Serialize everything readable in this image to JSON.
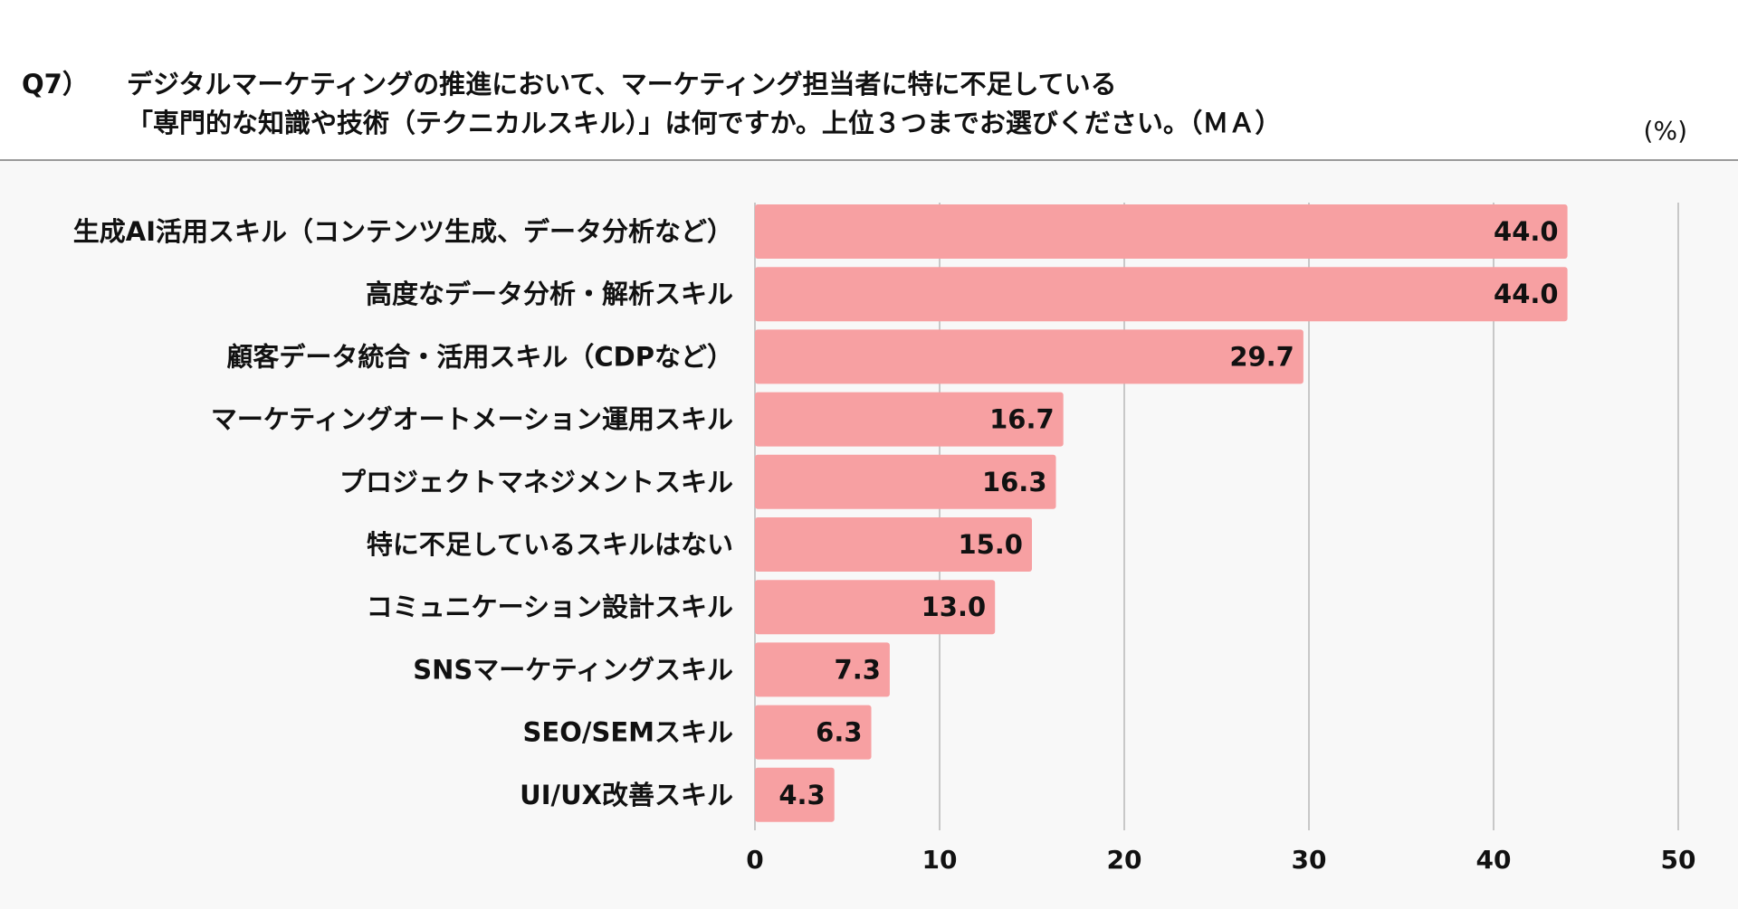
{
  "header": {
    "question_number": "Q7）",
    "question_line1": "デジタルマーケティングの推進において、マーケティング担当者に特に不足している",
    "question_line2": "「専門的な知識や技術（テクニカルスキル）」は何ですか。上位３つまでお選びください。（ＭＡ）",
    "unit": "(%)"
  },
  "chart_data": {
    "type": "bar",
    "orientation": "horizontal",
    "categories": [
      "生成AI活用スキル（コンテンツ生成、データ分析など）",
      "高度なデータ分析・解析スキル",
      "顧客データ統合・活用スキル（CDPなど）",
      "マーケティングオートメーション運用スキル",
      "プロジェクトマネジメントスキル",
      "特に不足しているスキルはない",
      "コミュニケーション設計スキル",
      "SNSマーケティングスキル",
      "SEO/SEMスキル",
      "UI/UX改善スキル"
    ],
    "values": [
      44.0,
      44.0,
      29.7,
      16.7,
      16.3,
      15.0,
      13.0,
      7.3,
      6.3,
      4.3
    ],
    "value_labels": [
      "44.0",
      "44.0",
      "29.7",
      "16.7",
      "16.3",
      "15.0",
      "13.0",
      "7.3",
      "6.3",
      "4.3"
    ],
    "xlim": [
      0,
      50
    ],
    "xticks": [
      0,
      10,
      20,
      30,
      40,
      50
    ],
    "xtick_labels": [
      "0",
      "10",
      "20",
      "30",
      "40",
      "50"
    ],
    "grid": "vertical",
    "bar_color": "#f7a0a2",
    "grid_color": "#c8c8c8"
  }
}
